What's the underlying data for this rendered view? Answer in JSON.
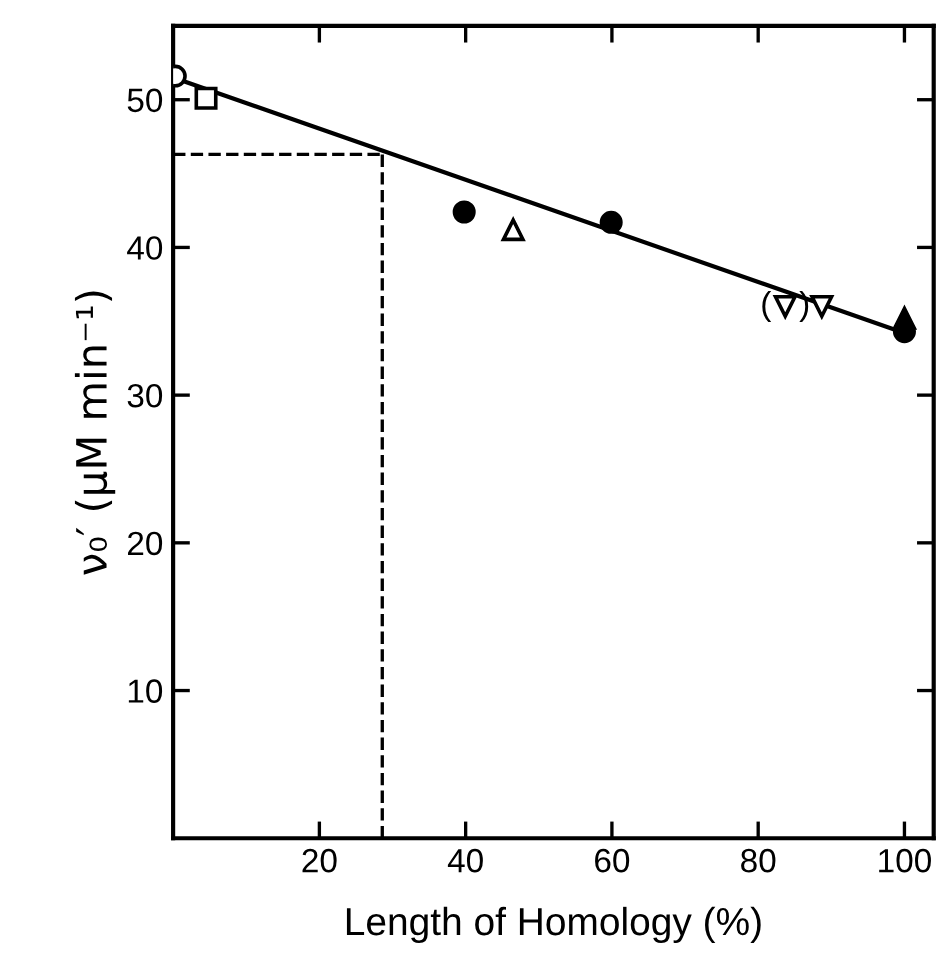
{
  "chart_data": {
    "type": "scatter",
    "xlabel": "Length of Homology (%)",
    "ylabel": "ν₀′ (μM min⁻¹)",
    "xlim": [
      0,
      104
    ],
    "ylim": [
      0,
      55
    ],
    "xticks": [
      20,
      40,
      60,
      80,
      100
    ],
    "yticks": [
      10,
      20,
      30,
      40,
      50
    ],
    "grid": false,
    "legend": false,
    "series": [
      {
        "color": "#ffffff",
        "marker": "circle",
        "x": [
          0.3
        ],
        "values": [
          51.6
        ]
      },
      {
        "color": "#ffffff",
        "marker": "square",
        "x": [
          4.5
        ],
        "values": [
          50.1
        ]
      },
      {
        "color": "#000000",
        "marker": "circle",
        "x": [
          39.8,
          59.9,
          100
        ],
        "values": [
          42.4,
          41.7,
          34.3
        ]
      },
      {
        "color": "#ffffff",
        "marker": "triangle",
        "x": [
          46.5
        ],
        "values": [
          41.2
        ]
      },
      {
        "color": "#ffffff",
        "marker": "triangle_down",
        "x": [
          83.7,
          88.7
        ],
        "values": [
          36.0,
          36.0
        ]
      },
      {
        "color": "#000000",
        "marker": "triangle",
        "x": [
          100
        ],
        "values": [
          35.2
        ]
      },
      {
        "type": "line",
        "color": "#000000",
        "marker": "none",
        "x": [
          0,
          100
        ],
        "values": [
          51.5,
          34.2
        ]
      }
    ],
    "ref_lines": [
      {
        "axis": "y",
        "value": 46.3,
        "color": "#000000",
        "line_style": "dashed"
      },
      {
        "axis": "x",
        "value": 28.6,
        "color": "#000000",
        "line_style": "dashed"
      }
    ],
    "annotations": [
      {
        "text": "(   )",
        "x": 83.7,
        "y": 36.0
      }
    ]
  }
}
